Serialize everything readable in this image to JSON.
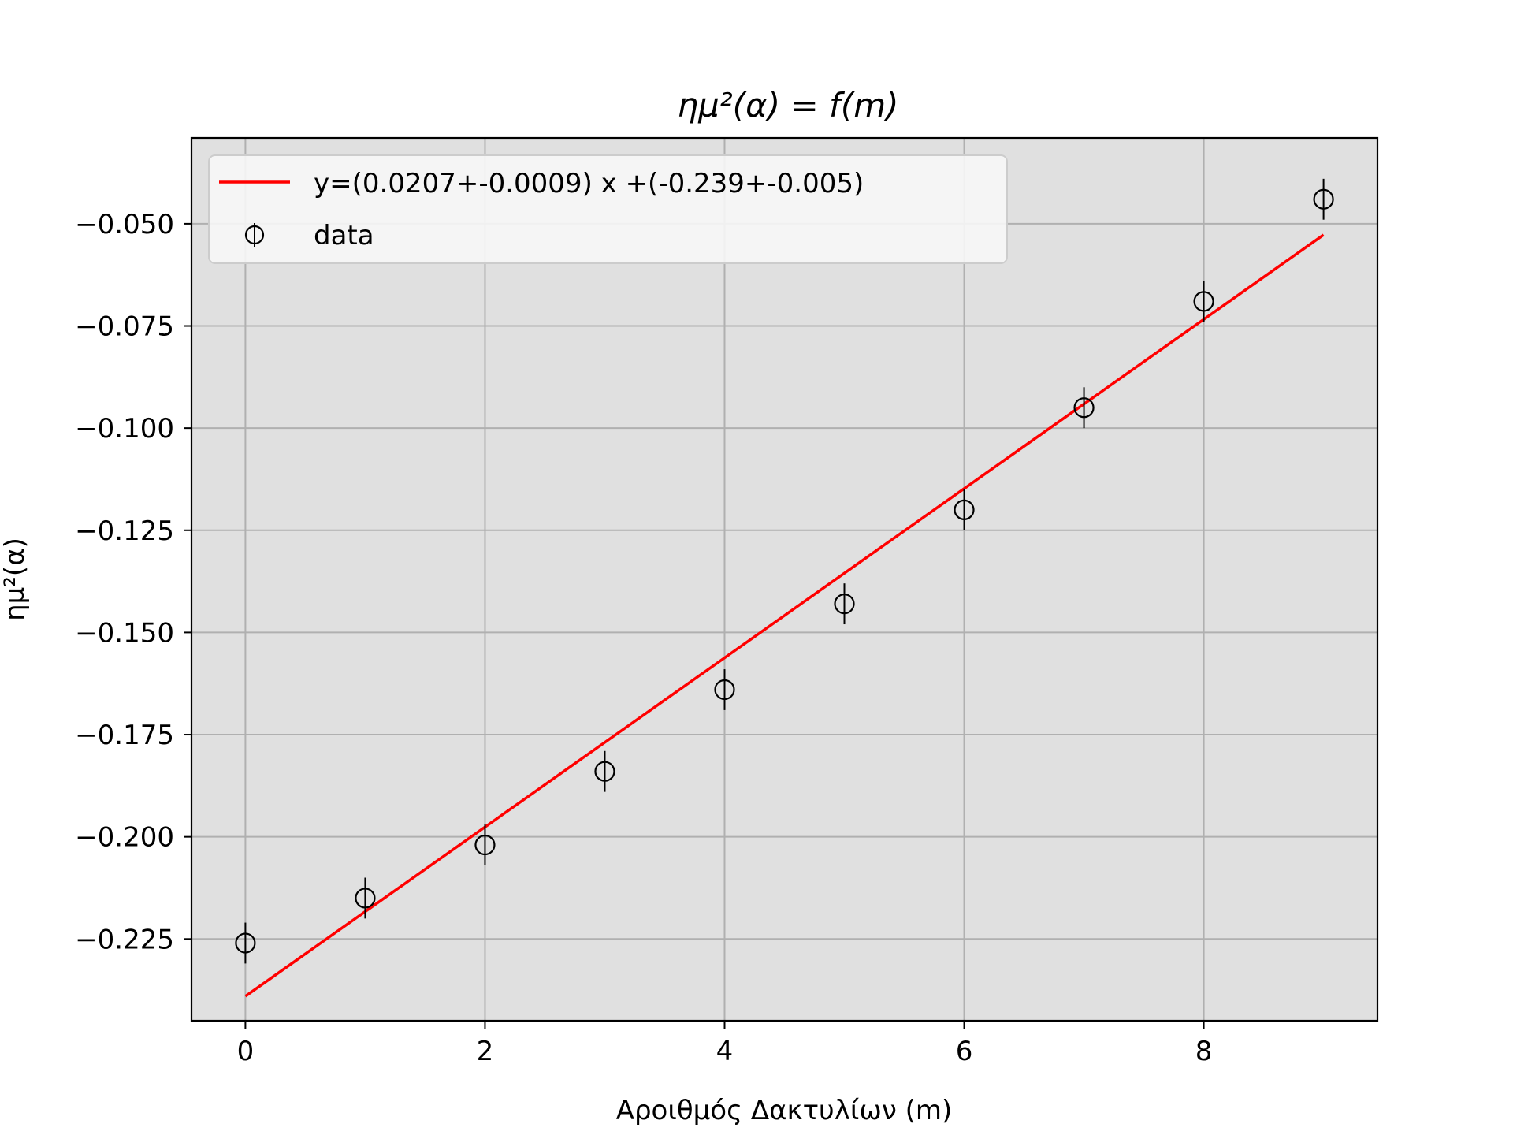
{
  "chart_data": {
    "type": "scatter",
    "title": "ημ²(α) = f(m)",
    "xlabel": "Αροιθμός Δακτυλίων (m)",
    "ylabel": "ημ²(α)",
    "xlim": [
      -0.45,
      9.45
    ],
    "ylim": [
      -0.245,
      -0.029
    ],
    "x_ticks": [
      0,
      2,
      4,
      6,
      8
    ],
    "x_tick_labels": [
      "0",
      "2",
      "4",
      "6",
      "8"
    ],
    "y_ticks": [
      -0.05,
      -0.075,
      -0.1,
      -0.125,
      -0.15,
      -0.175,
      -0.2,
      -0.225
    ],
    "y_tick_labels": [
      "−0.050",
      "−0.075",
      "−0.100",
      "−0.125",
      "−0.150",
      "−0.175",
      "−0.200",
      "−0.225"
    ],
    "grid": true,
    "legend_position": "top-left",
    "series": [
      {
        "name": "data",
        "kind": "errorbar",
        "marker": "open-circle",
        "color": "#000000",
        "x": [
          0,
          1,
          2,
          3,
          4,
          5,
          6,
          7,
          8,
          9
        ],
        "y": [
          -0.226,
          -0.215,
          -0.202,
          -0.184,
          -0.164,
          -0.143,
          -0.12,
          -0.095,
          -0.069,
          -0.044
        ],
        "yerr": [
          0.005,
          0.005,
          0.005,
          0.005,
          0.005,
          0.005,
          0.005,
          0.005,
          0.005,
          0.005
        ]
      },
      {
        "name": "y=(0.0207+-0.0009) x +(-0.239+-0.005)",
        "kind": "line",
        "color": "#ff0000",
        "x": [
          0,
          9
        ],
        "y": [
          -0.239,
          -0.0527
        ]
      }
    ],
    "legend": [
      {
        "label": "y=(0.0207+-0.0009) x +(-0.239+-0.005)",
        "kind": "line",
        "color": "#ff0000"
      },
      {
        "label": "data",
        "kind": "errorbar",
        "color": "#000000"
      }
    ],
    "colors": {
      "plot_background": "#e0e0e0",
      "grid": "#b0b0b0",
      "fit_line": "#ff0000",
      "data": "#000000"
    }
  }
}
